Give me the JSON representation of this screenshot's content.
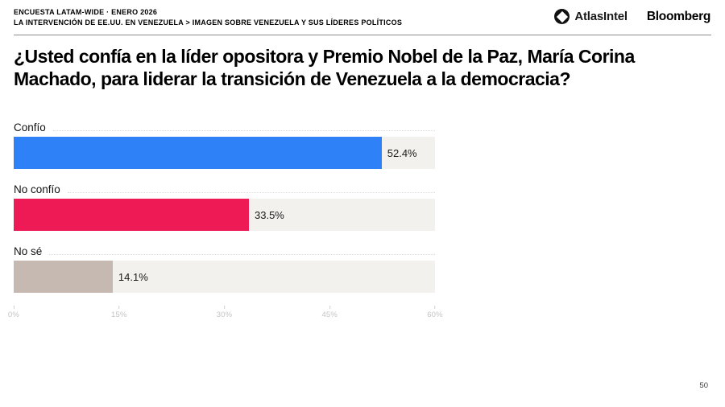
{
  "header": {
    "kicker_line1": "ENCUESTA LATAM-WIDE · ENERO 2026",
    "kicker_line2": "LA INTERVENCIÓN DE EE.UU. EN VENEZUELA > IMAGEN SOBRE VENEZUELA Y SUS LÍDERES POLÍTICOS",
    "logo_atlasintel": "AtlasIntel",
    "logo_bloomberg": "Bloomberg"
  },
  "title": "¿Usted confía en la líder opositora y Premio Nobel de la Paz, María Corina Machado, para liderar la transición de Venezuela a la democracia?",
  "chart_data": {
    "type": "bar",
    "orientation": "horizontal",
    "title": "",
    "categories": [
      "Confío",
      "No confío",
      "No sé"
    ],
    "values": [
      52.4,
      33.5,
      14.1
    ],
    "value_labels": [
      "52.4%",
      "33.5%",
      "14.1%"
    ],
    "bar_colors": [
      "#2e81f7",
      "#ee1a55",
      "#c5b9b1"
    ],
    "track_color": "#f2f1ed",
    "x_ticks": [
      "0%",
      "15%",
      "30%",
      "45%",
      "60%"
    ],
    "x_tick_positions_pct": [
      0,
      25,
      50,
      75,
      100
    ],
    "xlim": [
      0,
      60
    ],
    "grid": false,
    "legend": false
  },
  "page_number": "50"
}
